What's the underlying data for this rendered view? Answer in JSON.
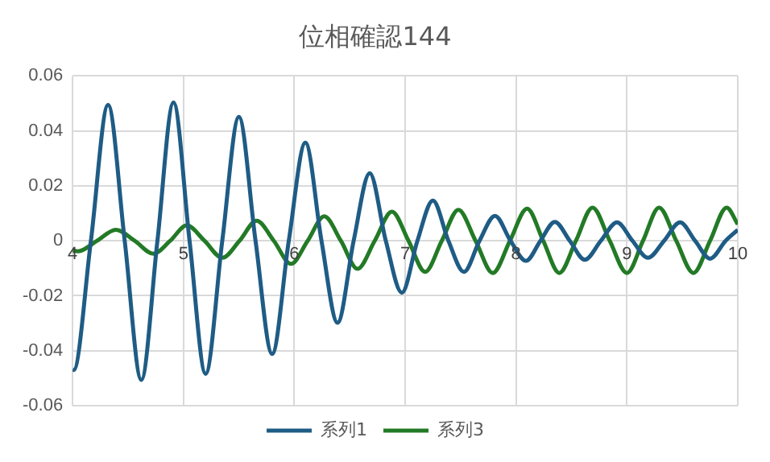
{
  "chart_data": {
    "type": "line",
    "title": "位相確認144",
    "xlim": [
      4,
      10
    ],
    "xticks": [
      4,
      5,
      6,
      7,
      8,
      9,
      10
    ],
    "ylim": [
      -0.06,
      0.06
    ],
    "yticks": [
      -0.06,
      -0.04,
      -0.02,
      0,
      0.02,
      0.04,
      0.06
    ],
    "grid": true,
    "legend": "bottom",
    "marker": "none",
    "series": [
      {
        "name": "系列1",
        "color": "#1f5c85",
        "x": [
          4,
          4.01,
          4.165,
          4.32,
          4.47,
          4.62,
          4.765,
          4.91,
          5.055,
          5.2,
          5.35,
          5.5,
          5.65,
          5.8,
          5.95,
          6.1,
          6.245,
          6.39,
          6.535,
          6.68,
          6.825,
          6.97,
          7.11,
          7.25,
          7.39,
          7.53,
          7.67,
          7.81,
          7.95,
          8.09,
          8.22,
          8.35,
          8.485,
          8.62,
          8.765,
          8.91,
          9.05,
          9.19,
          9.335,
          9.48,
          9.615,
          9.75,
          9.89,
          10
        ],
        "values": [
          -0.0468,
          -0.047,
          0,
          0.0495,
          0,
          -0.0506,
          0,
          0.0504,
          0,
          -0.0484,
          0,
          0.0451,
          0,
          -0.0412,
          0,
          0.0357,
          0,
          -0.0298,
          0,
          0.0246,
          0,
          -0.0189,
          0,
          0.0146,
          0,
          -0.0113,
          0,
          0.0091,
          0,
          -0.0073,
          0,
          0.0069,
          0,
          -0.0069,
          0,
          0.0067,
          0,
          -0.0062,
          0,
          0.0067,
          0,
          -0.0065,
          0,
          0.004
        ]
      },
      {
        "name": "系列3",
        "color": "#237a26",
        "x": [
          4,
          4.05,
          4.22,
          4.39,
          4.56,
          4.73,
          4.88,
          5.03,
          5.19,
          5.35,
          5.505,
          5.66,
          5.815,
          5.97,
          6.12,
          6.27,
          6.42,
          6.57,
          6.725,
          6.88,
          7.03,
          7.18,
          7.33,
          7.48,
          7.635,
          7.79,
          7.945,
          8.1,
          8.245,
          8.39,
          8.54,
          8.69,
          8.845,
          9,
          9.145,
          9.29,
          9.445,
          9.6,
          9.75,
          9.9,
          10
        ],
        "values": [
          -0.0036,
          -0.0038,
          0,
          0.004,
          0,
          -0.0047,
          0,
          0.0056,
          0,
          -0.0062,
          0,
          0.0073,
          0,
          -0.0084,
          0,
          0.0089,
          0,
          -0.0102,
          0,
          0.0106,
          0,
          -0.0113,
          0,
          0.0113,
          0,
          -0.0117,
          0,
          0.0117,
          0,
          -0.0117,
          0,
          0.0121,
          0,
          -0.0117,
          0,
          0.0121,
          0,
          -0.0117,
          0,
          0.0121,
          0.006
        ]
      }
    ]
  }
}
